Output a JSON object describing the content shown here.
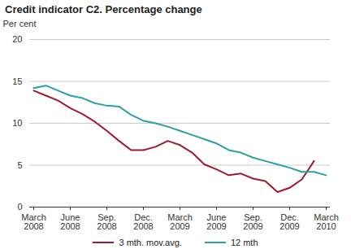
{
  "chart_data": {
    "type": "line",
    "title": "Credit indicator C2. Percentage change",
    "y_label": "Per cent",
    "categories": [
      "March\n2008",
      null,
      null,
      "June\n2008",
      null,
      null,
      "Sep.\n2008",
      null,
      null,
      "Dec.\n2008",
      null,
      null,
      "March\n2009",
      null,
      null,
      "June\n2009",
      null,
      null,
      "Sep.\n2009",
      null,
      null,
      "Dec.\n2009",
      null,
      null,
      "March\n2010"
    ],
    "series": [
      {
        "name": "3 mth. mov.avg.",
        "color": "#9e1b32",
        "values": [
          13.9,
          13.3,
          12.7,
          11.8,
          11.1,
          10.2,
          9.1,
          7.9,
          6.8,
          6.8,
          7.2,
          7.9,
          7.4,
          6.5,
          5.1,
          4.5,
          3.8,
          4.0,
          3.4,
          3.1,
          1.8,
          2.3,
          3.3,
          5.5,
          null
        ]
      },
      {
        "name": "12 mth",
        "color": "#2aa39f",
        "values": [
          14.2,
          14.5,
          13.9,
          13.3,
          13.0,
          12.4,
          12.1,
          12.0,
          11.0,
          10.3,
          10.0,
          9.6,
          9.1,
          8.6,
          8.1,
          7.6,
          6.8,
          6.5,
          5.9,
          5.5,
          5.1,
          4.7,
          4.2,
          4.2,
          3.8
        ]
      }
    ],
    "ylim": [
      0,
      20
    ],
    "yticks": [
      0,
      5,
      10,
      15,
      20
    ],
    "grid": true,
    "legend": "bottom"
  }
}
